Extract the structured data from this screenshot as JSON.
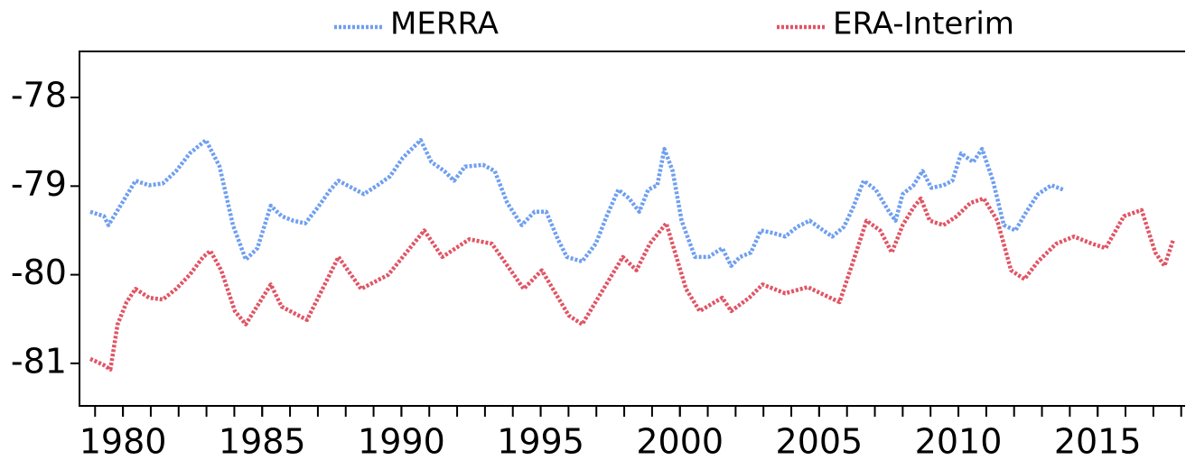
{
  "chart_data": {
    "type": "line",
    "legend": "top",
    "xlim": [
      1978.44,
      2018.14
    ],
    "xticks": [
      1980,
      1985,
      1990,
      1995,
      2000,
      2005,
      2010,
      2015
    ],
    "xminorticks": [
      1979,
      1980,
      1981,
      1982,
      1983,
      1984,
      1985,
      1986,
      1987,
      1988,
      1989,
      1990,
      1991,
      1992,
      1993,
      1994,
      1995,
      1996,
      1997,
      1998,
      1999,
      2000,
      2001,
      2002,
      2003,
      2004,
      2005,
      2006,
      2007,
      2008,
      2009,
      2010,
      2011,
      2012,
      2013,
      2014,
      2015,
      2016,
      2017,
      2018
    ],
    "ylim": [
      -81.48,
      -77.48
    ],
    "yticks": [
      -78,
      -79,
      -80,
      -81
    ],
    "series": [
      {
        "name": "MERRA",
        "color": "#6f9ff0",
        "x": [
          1978.83,
          1979.32,
          1979.48,
          1979.97,
          1980.45,
          1980.94,
          1981.43,
          1981.91,
          1982.4,
          1982.98,
          1983.47,
          1983.95,
          1984.41,
          1984.83,
          1985.31,
          1985.7,
          1986.12,
          1986.55,
          1987.0,
          1987.45,
          1987.74,
          1988.23,
          1988.65,
          1989.14,
          1989.59,
          1990.05,
          1990.69,
          1991.08,
          1991.54,
          1991.89,
          1992.28,
          1992.93,
          1993.35,
          1993.8,
          1994.32,
          1994.78,
          1995.2,
          1995.62,
          1995.94,
          1996.49,
          1996.98,
          1997.37,
          1997.79,
          1998.18,
          1998.54,
          1998.86,
          1999.19,
          1999.44,
          1999.74,
          2000.06,
          2000.54,
          2001.03,
          2001.52,
          2001.84,
          2002.16,
          2002.55,
          2002.91,
          2003.36,
          2003.78,
          2004.21,
          2004.66,
          2005.15,
          2005.47,
          2005.89,
          2006.22,
          2006.6,
          2007.03,
          2007.51,
          2007.74,
          2008.0,
          2008.39,
          2008.71,
          2009.03,
          2009.46,
          2009.78,
          2010.1,
          2010.53,
          2010.85,
          2011.24,
          2011.63,
          2012.05,
          2012.44,
          2012.86,
          2013.34,
          2013.76
        ],
        "values": [
          -79.29,
          -79.34,
          -79.44,
          -79.19,
          -78.94,
          -78.99,
          -78.97,
          -78.83,
          -78.63,
          -78.48,
          -78.78,
          -79.44,
          -79.83,
          -79.7,
          -79.22,
          -79.34,
          -79.39,
          -79.42,
          -79.24,
          -79.04,
          -78.94,
          -79.02,
          -79.09,
          -78.99,
          -78.89,
          -78.68,
          -78.48,
          -78.73,
          -78.83,
          -78.94,
          -78.78,
          -78.76,
          -78.83,
          -79.19,
          -79.44,
          -79.29,
          -79.29,
          -79.6,
          -79.8,
          -79.85,
          -79.65,
          -79.34,
          -79.04,
          -79.14,
          -79.29,
          -79.04,
          -78.99,
          -78.58,
          -78.83,
          -79.39,
          -79.8,
          -79.8,
          -79.7,
          -79.9,
          -79.8,
          -79.75,
          -79.5,
          -79.53,
          -79.57,
          -79.46,
          -79.39,
          -79.5,
          -79.57,
          -79.46,
          -79.24,
          -78.94,
          -79.04,
          -79.29,
          -79.39,
          -79.09,
          -78.99,
          -78.83,
          -79.02,
          -78.99,
          -78.94,
          -78.63,
          -78.73,
          -78.58,
          -78.94,
          -79.44,
          -79.5,
          -79.29,
          -79.09,
          -78.99,
          -79.04
        ]
      },
      {
        "name": "ERA-Interim",
        "color": "#e05565",
        "x": [
          1978.83,
          1979.32,
          1979.55,
          1979.81,
          1980.13,
          1980.45,
          1980.94,
          1981.43,
          1981.91,
          1982.4,
          1982.88,
          1983.14,
          1983.53,
          1984.02,
          1984.41,
          1985.31,
          1985.7,
          1986.61,
          1987.74,
          1988.55,
          1989.53,
          1990.82,
          1991.47,
          1992.44,
          1993.25,
          1994.39,
          1995.04,
          1996.01,
          1996.49,
          1997.95,
          1998.44,
          1998.92,
          1999.51,
          2000.22,
          2000.71,
          2001.52,
          2001.84,
          2002.49,
          2002.97,
          2003.78,
          2004.59,
          2005.73,
          2006.22,
          2006.7,
          2007.19,
          2007.61,
          2008.0,
          2008.39,
          2008.65,
          2008.97,
          2009.46,
          2009.94,
          2010.43,
          2010.91,
          2011.4,
          2011.89,
          2012.37,
          2012.86,
          2013.51,
          2014.15,
          2014.8,
          2015.29,
          2015.94,
          2016.58,
          2017.07,
          2017.4,
          2017.72
        ],
        "values": [
          -80.95,
          -81.02,
          -81.07,
          -80.56,
          -80.31,
          -80.16,
          -80.26,
          -80.28,
          -80.16,
          -80.0,
          -79.8,
          -79.73,
          -79.95,
          -80.41,
          -80.56,
          -80.11,
          -80.36,
          -80.51,
          -79.8,
          -80.16,
          -80.0,
          -79.5,
          -79.8,
          -79.6,
          -79.65,
          -80.16,
          -79.95,
          -80.46,
          -80.56,
          -79.8,
          -79.95,
          -79.65,
          -79.42,
          -80.16,
          -80.41,
          -80.26,
          -80.41,
          -80.26,
          -80.11,
          -80.21,
          -80.14,
          -80.31,
          -79.85,
          -79.39,
          -79.5,
          -79.75,
          -79.44,
          -79.24,
          -79.14,
          -79.39,
          -79.44,
          -79.34,
          -79.19,
          -79.14,
          -79.39,
          -79.95,
          -80.05,
          -79.85,
          -79.65,
          -79.57,
          -79.65,
          -79.7,
          -79.34,
          -79.27,
          -79.75,
          -79.9,
          -79.6
        ]
      }
    ]
  }
}
